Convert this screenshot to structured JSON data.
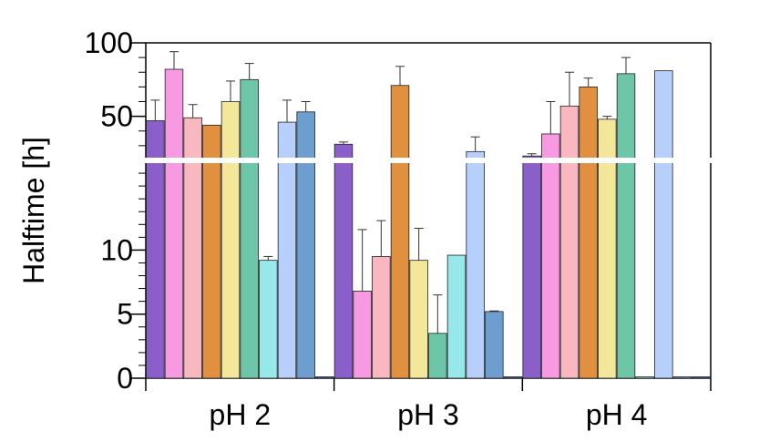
{
  "chart_data": {
    "type": "bar",
    "title": "",
    "xlabel": "",
    "ylabel": "Halftime [h]",
    "y_axis_break": true,
    "lower_axis": {
      "ylim": [
        0,
        17
      ],
      "ticks": [
        0,
        5,
        10
      ],
      "minor_step": 1
    },
    "upper_axis": {
      "ylim": [
        20,
        100
      ],
      "ticks": [
        50,
        100
      ],
      "minor_step": 10
    },
    "ytick_labels": [
      "0",
      "5",
      "10",
      "50",
      "100"
    ],
    "categories": [
      "pH 2",
      "pH 3",
      "pH 4"
    ],
    "series_colors": [
      "#8a5fc9",
      "#f79ae2",
      "#f9b8c0",
      "#e0903f",
      "#f3e79a",
      "#6ec6a8",
      "#97e8ea",
      "#b7cffb",
      "#6c9fcf",
      "#3b5ea8"
    ],
    "values": [
      [
        47,
        82,
        49,
        44,
        60,
        75,
        9.2,
        46,
        53,
        0
      ],
      [
        31,
        6.8,
        9.5,
        71,
        9.2,
        3.5,
        9.6,
        26,
        5.2,
        0
      ],
      [
        23,
        38,
        57,
        70,
        48,
        79,
        0,
        81,
        0,
        0
      ]
    ],
    "errors": [
      [
        14,
        12,
        9,
        0,
        14,
        11,
        0.3,
        15,
        7,
        0
      ],
      [
        1.5,
        4.8,
        2.8,
        13,
        2.5,
        3.0,
        0,
        10,
        0.05,
        0
      ],
      [
        1.5,
        22,
        23,
        6,
        2,
        11,
        0,
        0,
        0,
        0
      ]
    ]
  }
}
